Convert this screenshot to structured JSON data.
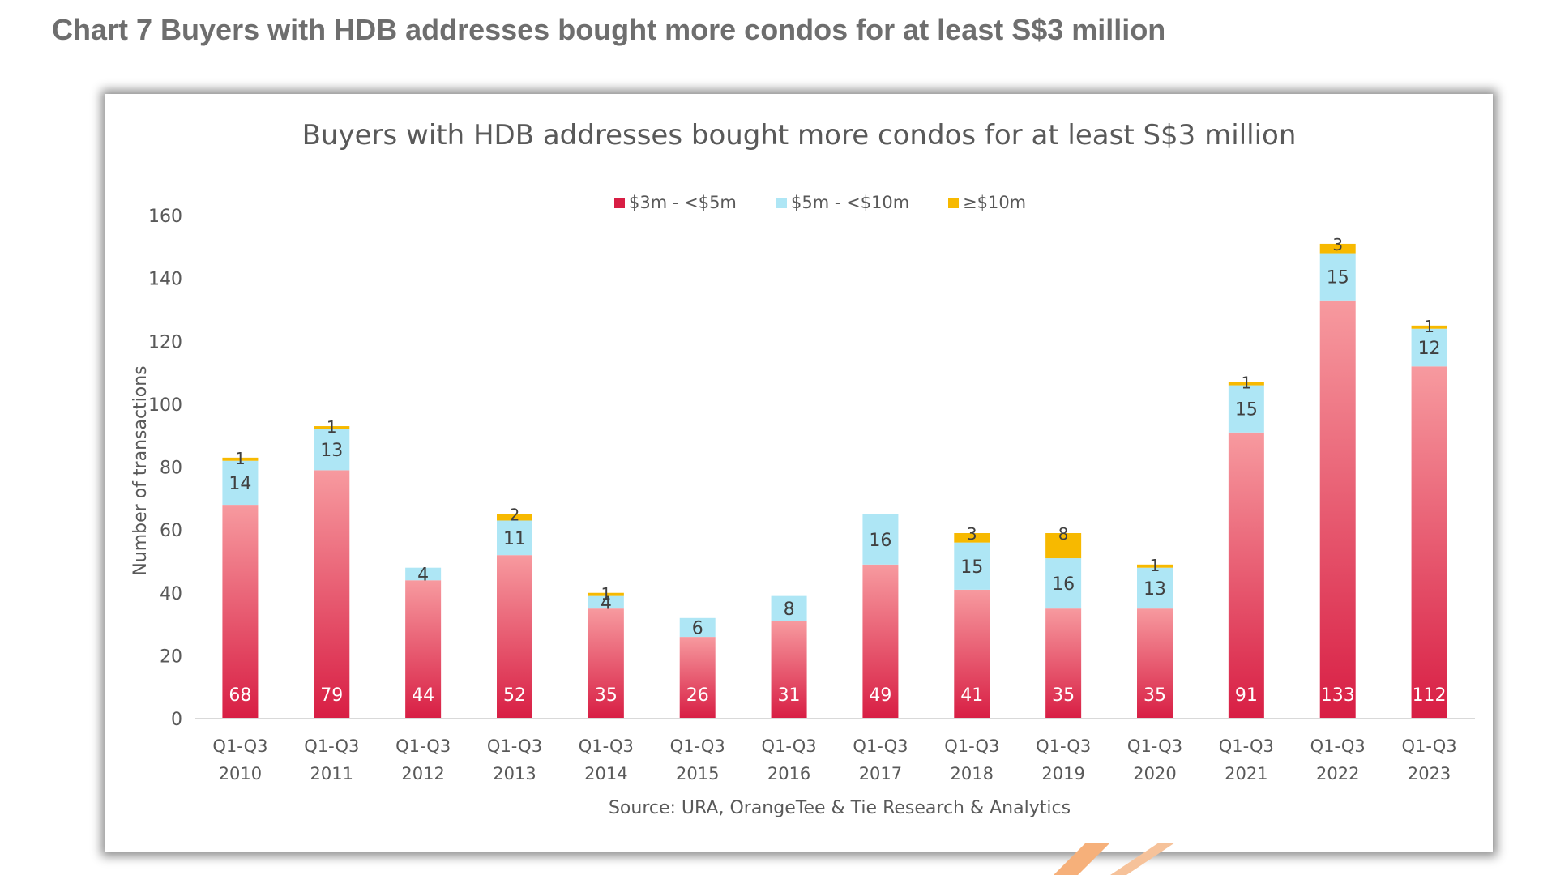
{
  "page": {
    "title": "Chart 7 Buyers with HDB addresses bought more condos for at least S$3 million"
  },
  "chart_data": {
    "type": "bar",
    "stacked": true,
    "title": "Buyers with HDB addresses bought more condos for at least S$3 million",
    "ylabel": "Number of transactions",
    "xlabel": "",
    "source": "Source: URA, OrangeTee & Tie Research & Analytics",
    "ylim": [
      0,
      160
    ],
    "yticks": [
      0,
      20,
      40,
      60,
      80,
      100,
      120,
      140,
      160
    ],
    "grid": false,
    "legend_position": "top-center",
    "categories": [
      [
        "Q1-Q3",
        "2010"
      ],
      [
        "Q1-Q3",
        "2011"
      ],
      [
        "Q1-Q3",
        "2012"
      ],
      [
        "Q1-Q3",
        "2013"
      ],
      [
        "Q1-Q3",
        "2014"
      ],
      [
        "Q1-Q3",
        "2015"
      ],
      [
        "Q1-Q3",
        "2016"
      ],
      [
        "Q1-Q3",
        "2017"
      ],
      [
        "Q1-Q3",
        "2018"
      ],
      [
        "Q1-Q3",
        "2019"
      ],
      [
        "Q1-Q3",
        "2020"
      ],
      [
        "Q1-Q3",
        "2021"
      ],
      [
        "Q1-Q3",
        "2022"
      ],
      [
        "Q1-Q3",
        "2023"
      ]
    ],
    "series": [
      {
        "name": "$3m - <$5m",
        "color": "#d81e44",
        "color_light": "#f79a9f",
        "values": [
          68,
          79,
          44,
          52,
          35,
          26,
          31,
          49,
          41,
          35,
          35,
          91,
          133,
          112
        ]
      },
      {
        "name": "$5m - <$10m",
        "color": "#aee6f5",
        "values": [
          14,
          13,
          4,
          11,
          4,
          6,
          8,
          16,
          15,
          16,
          13,
          15,
          15,
          12
        ]
      },
      {
        "name": "≥$10m",
        "color": "#f7b900",
        "values": [
          1,
          1,
          0,
          2,
          1,
          0,
          0,
          0,
          3,
          8,
          1,
          1,
          3,
          1
        ]
      }
    ]
  }
}
